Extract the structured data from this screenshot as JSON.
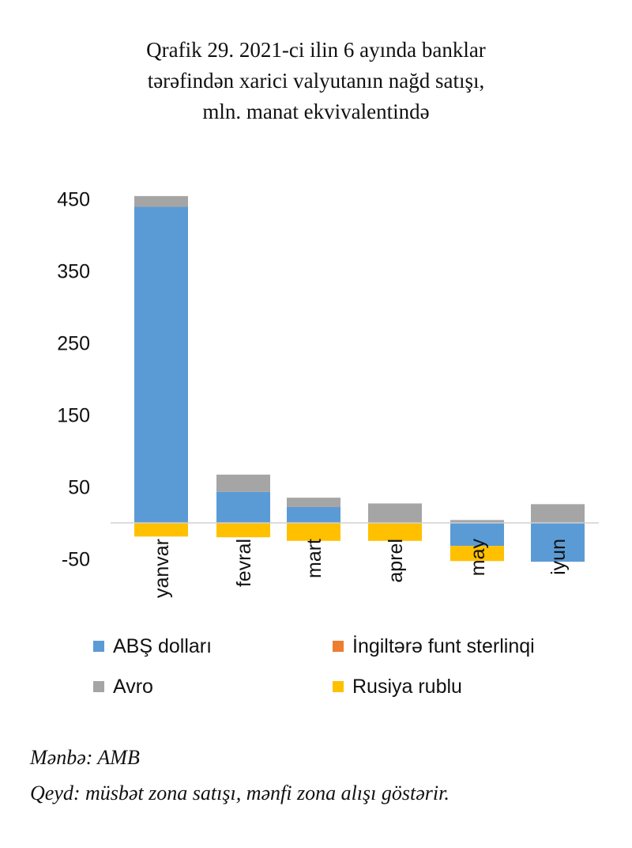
{
  "title": {
    "line1": "Qrafik 29. 2021-ci ilin 6 ayında banklar",
    "line2": "tərəfindən xarici valyutanın nağd satışı,",
    "line3": "mln. manat ekvivalentində"
  },
  "chart_data": {
    "type": "bar",
    "stacked": true,
    "categories": [
      "yanvar",
      "fevral",
      "mart",
      "aprel",
      "may",
      "iyun"
    ],
    "series": [
      {
        "name": "ABŞ dolları",
        "color": "#5b9bd5",
        "values": [
          439,
          43,
          22,
          0,
          -32,
          -54
        ]
      },
      {
        "name": "İngiltərə funt sterlinqi",
        "color": "#ed7d31",
        "values": [
          0,
          0,
          0,
          0,
          0,
          0
        ]
      },
      {
        "name": "Avro",
        "color": "#a5a5a5",
        "values": [
          15,
          24,
          13,
          27,
          4,
          26
        ]
      },
      {
        "name": "Rusiya rublu",
        "color": "#ffc000",
        "values": [
          -19,
          -20,
          -25,
          -25,
          -21,
          0
        ]
      }
    ],
    "yticks": [
      450,
      350,
      250,
      150,
      50,
      -50
    ],
    "ylim": [
      -55,
      460
    ],
    "grid": false,
    "legend_position": "bottom"
  },
  "legend": {
    "items": [
      {
        "label": "ABŞ dolları",
        "color": "#5b9bd5"
      },
      {
        "label": "İngiltərə funt sterlinqi",
        "color": "#ed7d31"
      },
      {
        "label": "Avro",
        "color": "#a5a5a5"
      },
      {
        "label": "Rusiya rublu",
        "color": "#ffc000"
      }
    ]
  },
  "notes": {
    "source": "Mənbə: AMB",
    "remark": "Qeyd: müsbət zona satışı, mənfi zona alışı göstərir."
  }
}
